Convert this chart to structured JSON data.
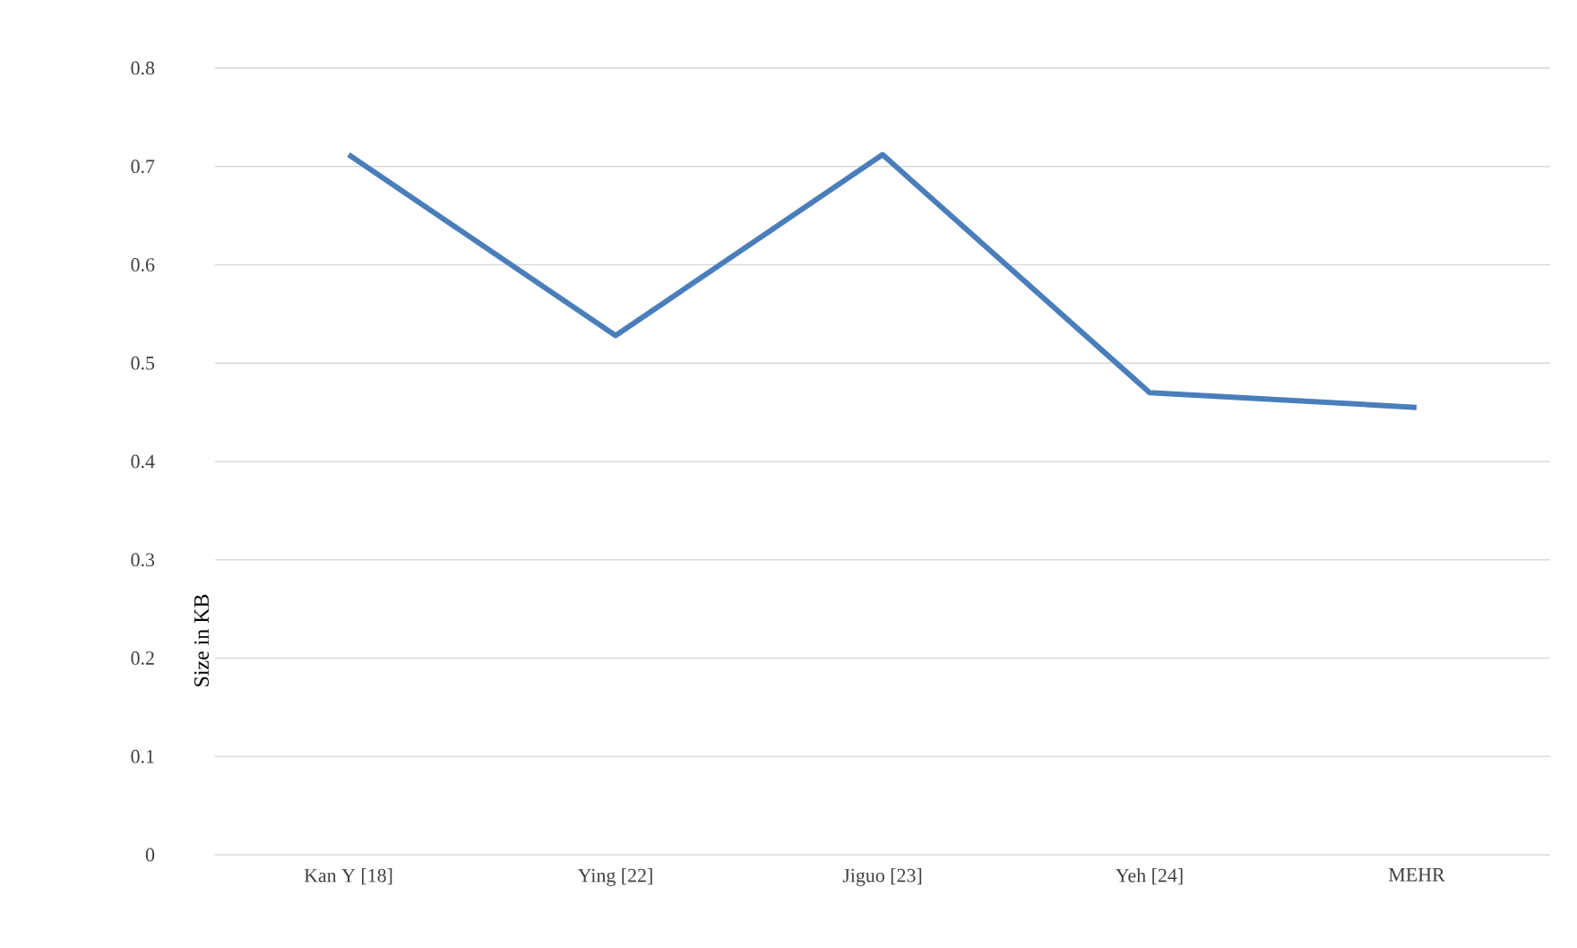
{
  "chart_data": {
    "type": "line",
    "ylabel": "Size in KB",
    "categories": [
      "Kan Y [18]",
      "Ying [22]",
      "Jiguo [23]",
      "Yeh [24]",
      "MEHR"
    ],
    "series": [
      {
        "color": "#4a7ebb",
        "values": [
          0.712,
          0.528,
          0.712,
          0.47,
          0.455
        ]
      }
    ],
    "ylim": [
      0,
      0.8
    ],
    "yticks": [
      0,
      0.1,
      0.2,
      0.3,
      0.4,
      0.5,
      0.6,
      0.7,
      0.8
    ],
    "grid": "y",
    "marker": "none",
    "line_style": "solid"
  }
}
